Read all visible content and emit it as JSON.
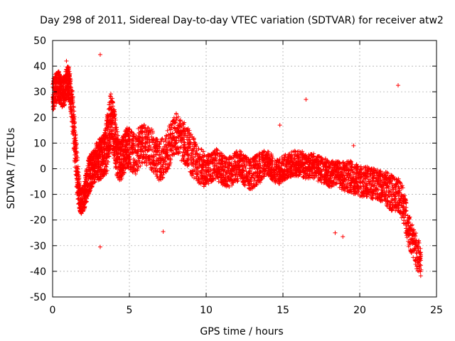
{
  "chart_data": {
    "type": "scatter",
    "title": "Day 298 of 2011, Sidereal Day-to-day VTEC variation (SDTVAR) for receiver atw2",
    "xlabel": "GPS time / hours",
    "ylabel": "SDTVAR / TECUs",
    "xlim": [
      0,
      25
    ],
    "ylim": [
      -50,
      50
    ],
    "xticks": [
      0,
      5,
      10,
      15,
      20,
      25
    ],
    "xtick_labels": [
      "0",
      "5",
      "10",
      "15",
      "20",
      "25"
    ],
    "yticks": [
      -50,
      -40,
      -30,
      -20,
      -10,
      0,
      10,
      20,
      30,
      40,
      50
    ],
    "ytick_labels": [
      "-50",
      "-40",
      "-30",
      "-20",
      "-10",
      "0",
      "10",
      "20",
      "30",
      "40",
      "50"
    ],
    "grid": true,
    "marker": "+",
    "color": "#ff0000",
    "series": [
      {
        "name": "SDTVAR",
        "x": [
          0.0,
          0.1,
          0.2,
          0.3,
          0.4,
          0.5,
          0.6,
          0.7,
          0.8,
          0.9,
          1.0,
          1.1,
          1.2,
          1.3,
          1.4,
          1.5,
          1.6,
          1.7,
          1.8,
          1.9,
          2.0,
          2.1,
          2.2,
          2.3,
          2.4,
          2.5,
          2.6,
          2.7,
          2.8,
          2.9,
          3.0,
          3.1,
          3.2,
          3.3,
          3.4,
          3.5,
          3.6,
          3.7,
          3.8,
          3.9,
          4.0,
          4.1,
          4.2,
          4.3,
          4.4,
          4.5,
          4.6,
          4.7,
          4.8,
          4.9,
          5.0,
          5.2,
          5.4,
          5.6,
          5.8,
          6.0,
          6.2,
          6.4,
          6.6,
          6.8,
          7.0,
          7.2,
          7.4,
          7.6,
          7.8,
          8.0,
          8.2,
          8.4,
          8.6,
          8.8,
          9.0,
          9.2,
          9.4,
          9.6,
          9.8,
          10.0,
          10.2,
          10.4,
          10.6,
          10.8,
          11.0,
          11.2,
          11.4,
          11.6,
          11.8,
          12.0,
          12.2,
          12.4,
          12.6,
          12.8,
          13.0,
          13.2,
          13.4,
          13.6,
          13.8,
          14.0,
          14.2,
          14.4,
          14.6,
          14.8,
          15.0,
          15.2,
          15.4,
          15.6,
          15.8,
          16.0,
          16.2,
          16.4,
          16.6,
          16.8,
          17.0,
          17.2,
          17.4,
          17.6,
          17.8,
          18.0,
          18.2,
          18.4,
          18.6,
          18.8,
          19.0,
          19.2,
          19.4,
          19.6,
          19.8,
          20.0,
          20.2,
          20.4,
          20.6,
          20.8,
          21.0,
          21.2,
          21.4,
          21.6,
          21.8,
          22.0,
          22.2,
          22.4,
          22.6,
          22.8,
          23.0,
          23.2,
          23.4,
          23.6,
          23.8,
          24.0
        ],
        "center": [
          28,
          30,
          31,
          32,
          32,
          31,
          30,
          30,
          31,
          33,
          34,
          33,
          28,
          22,
          14,
          6,
          -2,
          -8,
          -12,
          -13,
          -12,
          -9,
          -6,
          -4,
          -2,
          -1,
          0,
          1,
          2,
          3,
          3,
          4,
          4,
          5,
          6,
          8,
          12,
          16,
          18,
          17,
          14,
          10,
          6,
          4,
          3,
          4,
          5,
          7,
          8,
          8,
          8,
          6,
          5,
          8,
          9,
          10,
          9,
          8,
          6,
          4,
          3,
          4,
          6,
          9,
          12,
          14,
          13,
          11,
          10,
          8,
          6,
          4,
          2,
          1,
          0,
          -1,
          0,
          1,
          2,
          1,
          0,
          -1,
          -2,
          -1,
          0,
          1,
          1,
          0,
          -1,
          -2,
          -2,
          -1,
          0,
          1,
          2,
          2,
          1,
          0,
          -1,
          -1,
          0,
          1,
          1,
          2,
          2,
          2,
          2,
          1,
          1,
          1,
          1,
          0,
          0,
          -1,
          -1,
          -2,
          -2,
          -2,
          -2,
          -3,
          -3,
          -3,
          -3,
          -4,
          -4,
          -5,
          -5,
          -5,
          -5,
          -6,
          -6,
          -6,
          -7,
          -7,
          -8,
          -9,
          -10,
          -10,
          -11,
          -13,
          -18,
          -24,
          -28,
          -31,
          -34,
          -37
        ],
        "spread": [
          6,
          6,
          6,
          6,
          6,
          6,
          6,
          6,
          6,
          6,
          7,
          7,
          7,
          8,
          9,
          9,
          9,
          7,
          5,
          5,
          5,
          6,
          7,
          7,
          7,
          7,
          7,
          7,
          7,
          8,
          8,
          8,
          8,
          8,
          9,
          10,
          12,
          12,
          12,
          11,
          10,
          10,
          9,
          8,
          8,
          8,
          8,
          8,
          8,
          8,
          8,
          8,
          8,
          8,
          8,
          8,
          8,
          8,
          8,
          8,
          8,
          8,
          8,
          8,
          8,
          8,
          8,
          8,
          8,
          8,
          8,
          8,
          7,
          7,
          7,
          6,
          6,
          6,
          6,
          6,
          6,
          6,
          6,
          6,
          6,
          6,
          6,
          6,
          6,
          6,
          6,
          6,
          6,
          6,
          5,
          5,
          5,
          5,
          5,
          5,
          5,
          5,
          5,
          5,
          5,
          5,
          5,
          5,
          5,
          5,
          5,
          5,
          5,
          5,
          5,
          5,
          5,
          5,
          5,
          5,
          6,
          6,
          6,
          6,
          6,
          6,
          6,
          6,
          6,
          6,
          6,
          6,
          6,
          6,
          7,
          7,
          7,
          7,
          7,
          7,
          7,
          7,
          7,
          7,
          7,
          7
        ]
      }
    ],
    "outliers": [
      {
        "x": 3.1,
        "y": 44.5
      },
      {
        "x": 22.5,
        "y": 32.5
      },
      {
        "x": 16.5,
        "y": 27.0
      },
      {
        "x": 3.1,
        "y": -30.5
      },
      {
        "x": 7.2,
        "y": -24.5
      },
      {
        "x": 18.4,
        "y": -25.0
      },
      {
        "x": 18.9,
        "y": -26.5
      },
      {
        "x": 14.8,
        "y": 17.0
      },
      {
        "x": 19.6,
        "y": 9.0
      },
      {
        "x": 0.9,
        "y": 42.0
      }
    ]
  }
}
